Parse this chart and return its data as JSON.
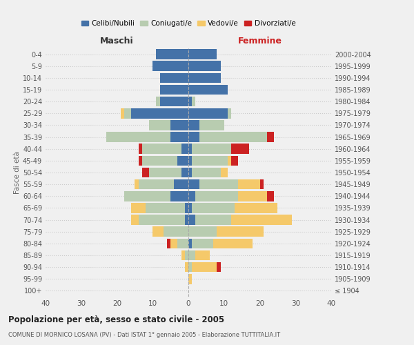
{
  "age_groups": [
    "100+",
    "95-99",
    "90-94",
    "85-89",
    "80-84",
    "75-79",
    "70-74",
    "65-69",
    "60-64",
    "55-59",
    "50-54",
    "45-49",
    "40-44",
    "35-39",
    "30-34",
    "25-29",
    "20-24",
    "15-19",
    "10-14",
    "5-9",
    "0-4"
  ],
  "birth_years": [
    "≤ 1904",
    "1905-1909",
    "1910-1914",
    "1915-1919",
    "1920-1924",
    "1925-1929",
    "1930-1934",
    "1935-1939",
    "1940-1944",
    "1945-1949",
    "1950-1954",
    "1955-1959",
    "1960-1964",
    "1965-1969",
    "1970-1974",
    "1975-1979",
    "1980-1984",
    "1985-1989",
    "1990-1994",
    "1995-1999",
    "2000-2004"
  ],
  "male": {
    "celibi": [
      0,
      0,
      0,
      0,
      0,
      0,
      1,
      1,
      5,
      4,
      2,
      3,
      2,
      5,
      5,
      16,
      8,
      8,
      8,
      10,
      9
    ],
    "coniugati": [
      0,
      0,
      0,
      1,
      3,
      7,
      13,
      11,
      13,
      10,
      9,
      10,
      11,
      18,
      6,
      2,
      1,
      0,
      0,
      0,
      0
    ],
    "vedovi": [
      0,
      0,
      1,
      1,
      2,
      3,
      2,
      4,
      0,
      1,
      0,
      0,
      0,
      0,
      0,
      1,
      0,
      0,
      0,
      0,
      0
    ],
    "divorziati": [
      0,
      0,
      0,
      0,
      1,
      0,
      0,
      0,
      0,
      0,
      2,
      1,
      1,
      0,
      0,
      0,
      0,
      0,
      0,
      0,
      0
    ]
  },
  "female": {
    "nubili": [
      0,
      0,
      0,
      0,
      1,
      0,
      2,
      1,
      2,
      3,
      1,
      1,
      1,
      3,
      3,
      11,
      1,
      11,
      9,
      9,
      8
    ],
    "coniugate": [
      0,
      0,
      1,
      2,
      6,
      8,
      10,
      12,
      12,
      11,
      8,
      10,
      11,
      19,
      7,
      1,
      1,
      0,
      0,
      0,
      0
    ],
    "vedove": [
      0,
      1,
      7,
      4,
      11,
      13,
      17,
      12,
      8,
      6,
      2,
      1,
      0,
      0,
      0,
      0,
      0,
      0,
      0,
      0,
      0
    ],
    "divorziate": [
      0,
      0,
      1,
      0,
      0,
      0,
      0,
      0,
      2,
      1,
      0,
      2,
      5,
      2,
      0,
      0,
      0,
      0,
      0,
      0,
      0
    ]
  },
  "colors": {
    "celibi": "#4472A8",
    "coniugati": "#B8CCB0",
    "vedovi": "#F5C96A",
    "divorziati": "#CC2222"
  },
  "xlim": 40,
  "title": "Popolazione per età, sesso e stato civile - 2005",
  "subtitle": "COMUNE DI MORNICO LOSANA (PV) - Dati ISTAT 1° gennaio 2005 - Elaborazione TUTTITALIA.IT",
  "ylabel_left": "Fasce di età",
  "xlabel_male": "Maschi",
  "xlabel_female": "Femmine",
  "legend_labels": [
    "Celibi/Nubili",
    "Coniugati/e",
    "Vedovi/e",
    "Divorziati/e"
  ],
  "bg_color": "#f0f0f0",
  "bar_height": 0.85
}
